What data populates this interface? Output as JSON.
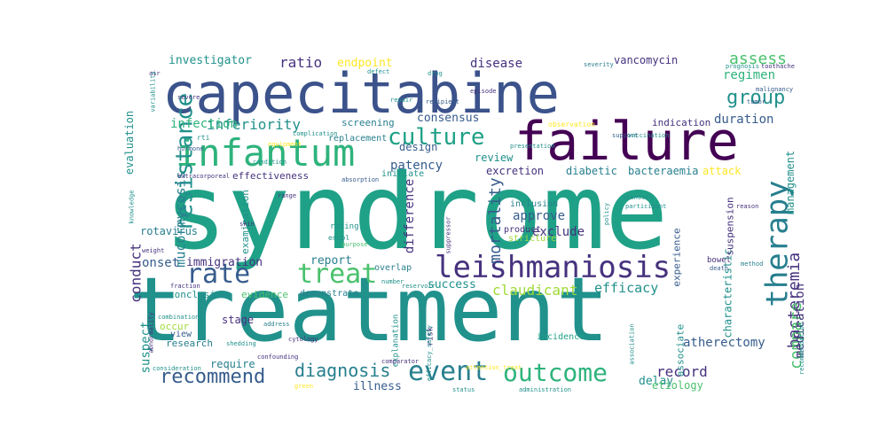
{
  "palette": {
    "dark_purple": "#440154",
    "indigo": "#46327e",
    "slate_blue": "#365c8d",
    "blue": "#3b528b",
    "teal_blue": "#277f8e",
    "teal": "#21918c",
    "green_teal": "#1fa187",
    "green": "#2eb37c",
    "light_green": "#4ac16d",
    "yellow_green": "#9fda3a",
    "yellow": "#fde725",
    "bg": "#ffffff"
  },
  "words": [
    {
      "text": "syndrome",
      "color": "green_teal"
    },
    {
      "text": "treatment",
      "color": "teal"
    },
    {
      "text": "capecitabine",
      "color": "blue"
    },
    {
      "text": "failure",
      "color": "dark_purple"
    },
    {
      "text": "infantum",
      "color": "green"
    },
    {
      "text": "leishmaniosis",
      "color": "indigo"
    },
    {
      "text": "therapy",
      "color": "teal_blue"
    },
    {
      "text": "event",
      "color": "teal_blue"
    },
    {
      "text": "outcome",
      "color": "green"
    },
    {
      "text": "treat",
      "color": "light_green"
    },
    {
      "text": "rate",
      "color": "slate_blue"
    },
    {
      "text": "culture",
      "color": "green_teal"
    },
    {
      "text": "resistance",
      "color": "teal"
    },
    {
      "text": "recommend",
      "color": "slate_blue"
    },
    {
      "text": "diagnosis",
      "color": "teal_blue"
    },
    {
      "text": "group",
      "color": "teal"
    },
    {
      "text": "assess",
      "color": "light_green"
    },
    {
      "text": "bacteremia",
      "color": "indigo"
    },
    {
      "text": "compare",
      "color": "light_green"
    },
    {
      "text": "mortality",
      "color": "slate_blue"
    },
    {
      "text": "inferiority",
      "color": "teal"
    },
    {
      "text": "infection",
      "color": "green"
    },
    {
      "text": "vancomycin",
      "color": "indigo"
    },
    {
      "text": "investigator",
      "color": "teal"
    },
    {
      "text": "ratio",
      "color": "indigo"
    },
    {
      "text": "endpoint",
      "color": "yellow"
    },
    {
      "text": "disease",
      "color": "indigo"
    },
    {
      "text": "regimen",
      "color": "green"
    },
    {
      "text": "duration",
      "color": "slate_blue"
    },
    {
      "text": "mucormycosis",
      "color": "teal_blue"
    },
    {
      "text": "patency",
      "color": "slate_blue"
    },
    {
      "text": "consensus",
      "color": "slate_blue"
    },
    {
      "text": "review",
      "color": "teal"
    },
    {
      "text": "excretion",
      "color": "indigo"
    },
    {
      "text": "diabetic",
      "color": "teal_blue"
    },
    {
      "text": "bacteraemia",
      "color": "teal_blue"
    },
    {
      "text": "attack",
      "color": "yellow"
    },
    {
      "text": "management",
      "color": "teal"
    },
    {
      "text": "medication",
      "color": "indigo"
    },
    {
      "text": "atherectomy",
      "color": "slate_blue"
    },
    {
      "text": "conduct",
      "color": "indigo"
    },
    {
      "text": "onset",
      "color": "slate_blue"
    },
    {
      "text": "immigration",
      "color": "indigo"
    },
    {
      "text": "report",
      "color": "teal_blue"
    },
    {
      "text": "success",
      "color": "teal"
    },
    {
      "text": "claudicant",
      "color": "yellow_green"
    },
    {
      "text": "efficacy",
      "color": "teal"
    },
    {
      "text": "exclude",
      "color": "indigo"
    },
    {
      "text": "approve",
      "color": "slate_blue"
    },
    {
      "text": "difference",
      "color": "indigo"
    },
    {
      "text": "effectiveness",
      "color": "indigo"
    },
    {
      "text": "record",
      "color": "indigo"
    },
    {
      "text": "delay",
      "color": "teal"
    },
    {
      "text": "etiology",
      "color": "light_green"
    },
    {
      "text": "suspect",
      "color": "teal"
    },
    {
      "text": "stage",
      "color": "indigo"
    },
    {
      "text": "occur",
      "color": "yellow_green"
    },
    {
      "text": "view",
      "color": "slate_blue"
    },
    {
      "text": "research",
      "color": "teal_blue"
    },
    {
      "text": "require",
      "color": "teal_blue"
    },
    {
      "text": "illness",
      "color": "slate_blue"
    },
    {
      "text": "design",
      "color": "slate_blue"
    },
    {
      "text": "screening",
      "color": "teal_blue"
    },
    {
      "text": "evaluation",
      "color": "teal"
    },
    {
      "text": "rotavirus",
      "color": "teal_blue"
    },
    {
      "text": "examination",
      "color": "teal"
    },
    {
      "text": "conclusion",
      "color": "teal"
    },
    {
      "text": "evidence",
      "color": "light_green"
    },
    {
      "text": "demonstrate",
      "color": "teal_blue"
    },
    {
      "text": "characteristic",
      "color": "teal"
    },
    {
      "text": "experience",
      "color": "slate_blue"
    },
    {
      "text": "associate",
      "color": "teal"
    },
    {
      "text": "incidence",
      "color": "green_teal"
    },
    {
      "text": "indication",
      "color": "indigo"
    },
    {
      "text": "replacement",
      "color": "teal_blue"
    },
    {
      "text": "initiate",
      "color": "teal"
    },
    {
      "text": "inclusion",
      "color": "teal_blue"
    },
    {
      "text": "product",
      "color": "indigo"
    },
    {
      "text": "stricture",
      "color": "yellow_green"
    },
    {
      "text": "overlap",
      "color": "teal_blue"
    },
    {
      "text": "rating",
      "color": "teal"
    },
    {
      "text": "enrol",
      "color": "teal"
    },
    {
      "text": "explanation",
      "color": "teal"
    },
    {
      "text": "risk",
      "color": "indigo"
    },
    {
      "text": "suspension",
      "color": "indigo"
    },
    {
      "text": "bowel",
      "color": "indigo"
    },
    {
      "text": "presentation",
      "color": "teal"
    },
    {
      "text": "tumor",
      "color": "slate_blue"
    },
    {
      "text": "support",
      "color": "slate_blue"
    },
    {
      "text": "severity",
      "color": "teal_blue"
    },
    {
      "text": "malignancy",
      "color": "slate_blue"
    },
    {
      "text": "prognosis",
      "color": "teal"
    },
    {
      "text": "toothache",
      "color": "indigo"
    },
    {
      "text": "recipient",
      "color": "slate_blue"
    },
    {
      "text": "episode",
      "color": "indigo"
    },
    {
      "text": "repair",
      "color": "teal"
    },
    {
      "text": "drug",
      "color": "teal"
    },
    {
      "text": "defect",
      "color": "teal"
    },
    {
      "text": "air",
      "color": "indigo"
    },
    {
      "text": "variability",
      "color": "teal"
    },
    {
      "text": "severe",
      "color": "indigo"
    },
    {
      "text": "rti",
      "color": "teal"
    },
    {
      "text": "equipment",
      "color": "yellow"
    },
    {
      "text": "condition",
      "color": "teal"
    },
    {
      "text": "absorption",
      "color": "slate_blue"
    },
    {
      "text": "range",
      "color": "indigo"
    },
    {
      "text": "skin",
      "color": "indigo"
    },
    {
      "text": "purpose",
      "color": "light_green"
    },
    {
      "text": "number",
      "color": "teal"
    },
    {
      "text": "reservoir",
      "color": "teal"
    },
    {
      "text": "suppressor",
      "color": "indigo"
    },
    {
      "text": "policy",
      "color": "teal"
    },
    {
      "text": "participant",
      "color": "teal"
    },
    {
      "text": "reason",
      "color": "indigo"
    },
    {
      "text": "death",
      "color": "slate_blue"
    },
    {
      "text": "method",
      "color": "teal_blue"
    },
    {
      "text": "extracorporeal",
      "color": "indigo"
    },
    {
      "text": "knowledge",
      "color": "teal"
    },
    {
      "text": "weight",
      "color": "indigo"
    },
    {
      "text": "combination",
      "color": "teal"
    },
    {
      "text": "abnormality",
      "color": "indigo"
    },
    {
      "text": "consideration",
      "color": "teal"
    },
    {
      "text": "address",
      "color": "teal_blue"
    },
    {
      "text": "shedding",
      "color": "teal"
    },
    {
      "text": "cytology",
      "color": "indigo"
    },
    {
      "text": "confounding",
      "color": "indigo"
    },
    {
      "text": "efficacy_safety",
      "color": "teal"
    },
    {
      "text": "comparator",
      "color": "indigo"
    },
    {
      "text": "attention_treat",
      "color": "yellow"
    },
    {
      "text": "administration",
      "color": "teal"
    },
    {
      "text": "status",
      "color": "teal"
    },
    {
      "text": "association",
      "color": "teal"
    },
    {
      "text": "recommendation",
      "color": "teal"
    },
    {
      "text": "fraction",
      "color": "indigo"
    },
    {
      "text": "hormone",
      "color": "slate_blue"
    },
    {
      "text": "vaccination",
      "color": "teal"
    },
    {
      "text": "complication",
      "color": "teal"
    },
    {
      "text": "observation",
      "color": "yellow"
    },
    {
      "text": "stenosis",
      "color": "teal"
    },
    {
      "text": "green",
      "color": "yellow"
    }
  ]
}
